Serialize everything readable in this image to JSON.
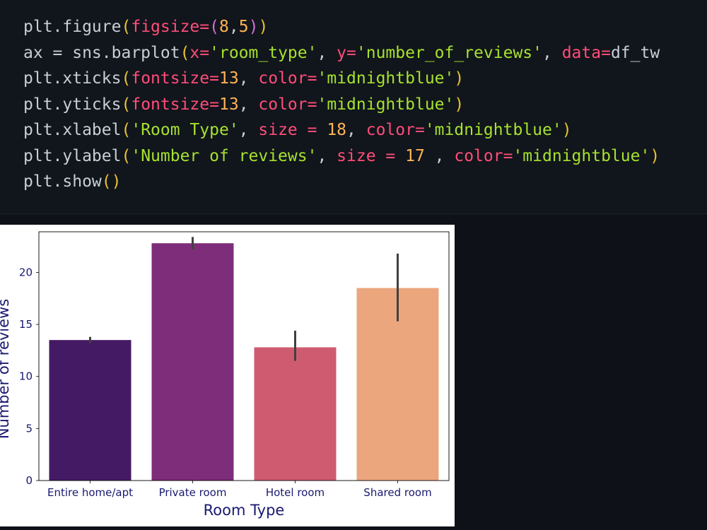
{
  "code": {
    "lines": [
      [
        {
          "t": "plt.figure",
          "c": "fn"
        },
        {
          "t": "(",
          "c": "paren"
        },
        {
          "t": "figsize",
          "c": "kw"
        },
        {
          "t": "=",
          "c": "op"
        },
        {
          "t": "(",
          "c": "paren2"
        },
        {
          "t": "8",
          "c": "num"
        },
        {
          "t": ",",
          "c": "punct"
        },
        {
          "t": "5",
          "c": "num"
        },
        {
          "t": ")",
          "c": "paren2"
        },
        {
          "t": ")",
          "c": "paren"
        }
      ],
      [
        {
          "t": "ax = sns.barplot",
          "c": "fn"
        },
        {
          "t": "(",
          "c": "paren"
        },
        {
          "t": "x",
          "c": "kw"
        },
        {
          "t": "=",
          "c": "op"
        },
        {
          "t": "'room_type'",
          "c": "str"
        },
        {
          "t": ", ",
          "c": "punct"
        },
        {
          "t": "y",
          "c": "kw"
        },
        {
          "t": "=",
          "c": "op"
        },
        {
          "t": "'number_of_reviews'",
          "c": "str"
        },
        {
          "t": ", ",
          "c": "punct"
        },
        {
          "t": "data",
          "c": "kw"
        },
        {
          "t": "=",
          "c": "op"
        },
        {
          "t": "df_tw",
          "c": "fn"
        }
      ],
      [
        {
          "t": "plt.xticks",
          "c": "fn"
        },
        {
          "t": "(",
          "c": "paren"
        },
        {
          "t": "fontsize",
          "c": "kw"
        },
        {
          "t": "=",
          "c": "op"
        },
        {
          "t": "13",
          "c": "num"
        },
        {
          "t": ", ",
          "c": "punct"
        },
        {
          "t": "color",
          "c": "kw"
        },
        {
          "t": "=",
          "c": "op"
        },
        {
          "t": "'midnightblue'",
          "c": "str"
        },
        {
          "t": ")",
          "c": "paren"
        }
      ],
      [
        {
          "t": "plt.yticks",
          "c": "fn"
        },
        {
          "t": "(",
          "c": "paren"
        },
        {
          "t": "fontsize",
          "c": "kw"
        },
        {
          "t": "=",
          "c": "op"
        },
        {
          "t": "13",
          "c": "num"
        },
        {
          "t": ", ",
          "c": "punct"
        },
        {
          "t": "color",
          "c": "kw"
        },
        {
          "t": "=",
          "c": "op"
        },
        {
          "t": "'midnightblue'",
          "c": "str"
        },
        {
          "t": ")",
          "c": "paren"
        }
      ],
      [
        {
          "t": "plt.xlabel",
          "c": "fn"
        },
        {
          "t": "(",
          "c": "paren"
        },
        {
          "t": "'Room Type'",
          "c": "str"
        },
        {
          "t": ", ",
          "c": "punct"
        },
        {
          "t": "size",
          "c": "kw"
        },
        {
          "t": " = ",
          "c": "op"
        },
        {
          "t": "18",
          "c": "num"
        },
        {
          "t": ", ",
          "c": "punct"
        },
        {
          "t": "color",
          "c": "kw"
        },
        {
          "t": "=",
          "c": "op"
        },
        {
          "t": "'midnightblue'",
          "c": "str"
        },
        {
          "t": ")",
          "c": "paren"
        }
      ],
      [
        {
          "t": "plt.ylabel",
          "c": "fn"
        },
        {
          "t": "(",
          "c": "paren"
        },
        {
          "t": "'Number of reviews'",
          "c": "str"
        },
        {
          "t": ", ",
          "c": "punct"
        },
        {
          "t": "size",
          "c": "kw"
        },
        {
          "t": " = ",
          "c": "op"
        },
        {
          "t": "17",
          "c": "num"
        },
        {
          "t": " , ",
          "c": "punct"
        },
        {
          "t": "color",
          "c": "kw"
        },
        {
          "t": "=",
          "c": "op"
        },
        {
          "t": "'midnightblue'",
          "c": "str"
        },
        {
          "t": ")",
          "c": "paren"
        }
      ],
      [
        {
          "t": "plt.show",
          "c": "fn"
        },
        {
          "t": "()",
          "c": "paren"
        }
      ]
    ]
  },
  "chart_data": {
    "type": "bar",
    "categories": [
      "Entire home/apt",
      "Private room",
      "Hotel room",
      "Shared room"
    ],
    "values": [
      13.5,
      22.8,
      12.8,
      18.5
    ],
    "error_low": [
      13.2,
      22.2,
      11.5,
      15.3
    ],
    "error_high": [
      13.8,
      23.4,
      14.4,
      21.8
    ],
    "colors": [
      "#451a64",
      "#7d2d7a",
      "#cf5b71",
      "#eba67d"
    ],
    "error_color": "#404040",
    "xlabel": "Room Type",
    "ylabel": "Number of reviews",
    "ylim": [
      0,
      23.9
    ],
    "yticks": [
      0,
      5,
      10,
      15,
      20
    ],
    "tick_color": "#191970",
    "grid": false
  }
}
